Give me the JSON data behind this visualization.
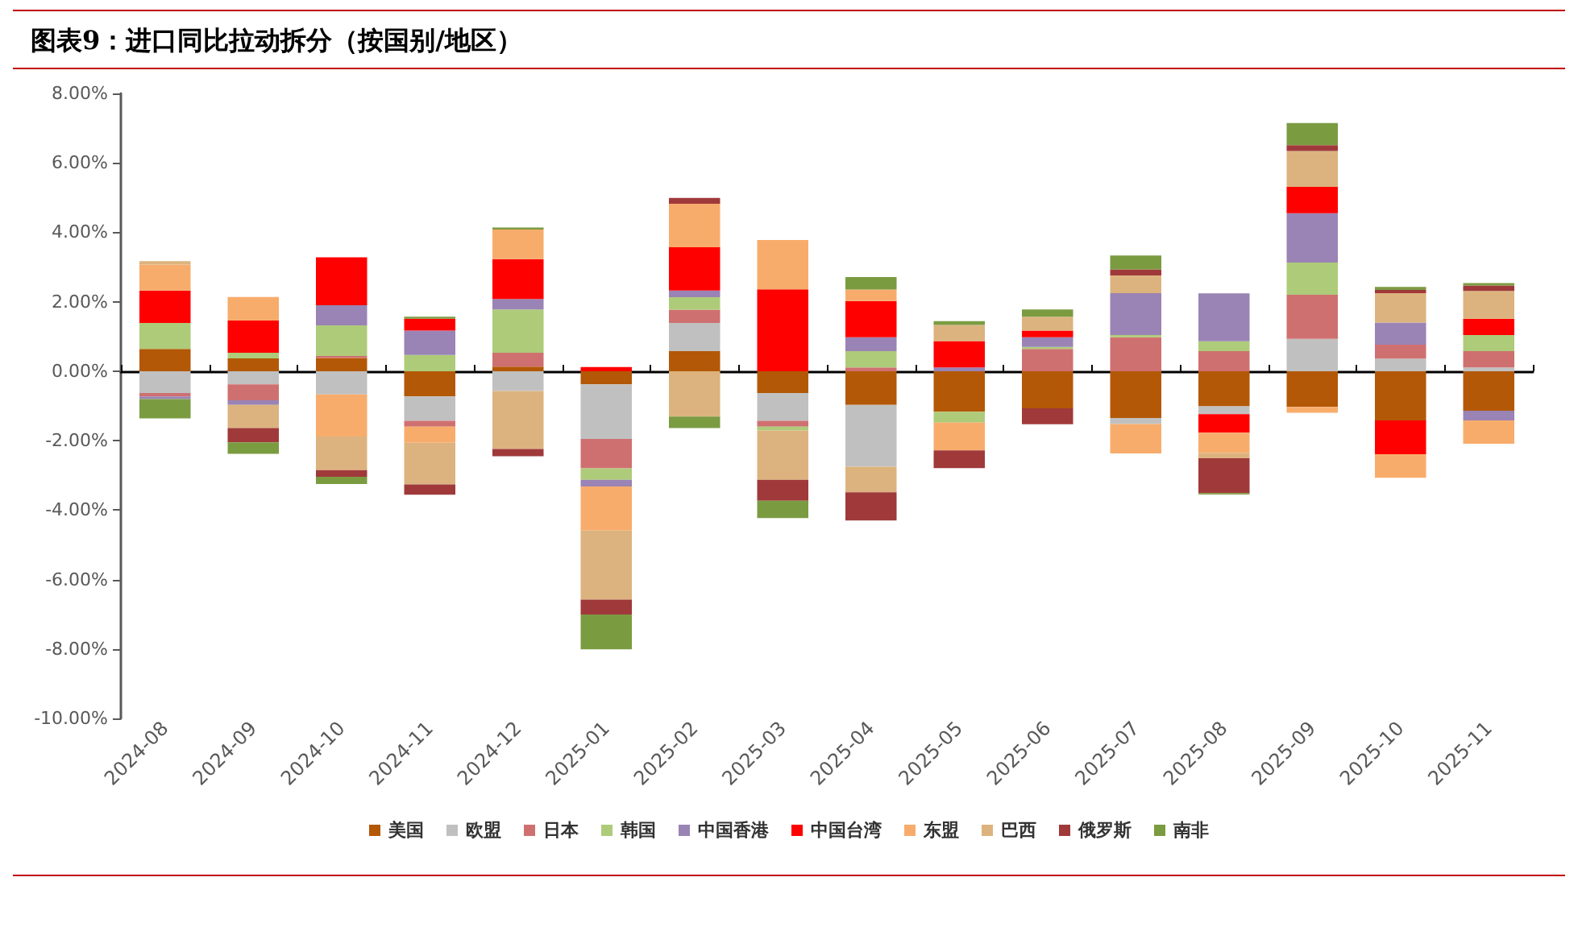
{
  "chart_data": {
    "type": "bar",
    "title": "图表9：进口同比拉动拆分（按国别/地区）",
    "stacked": true,
    "legend": "bottom",
    "categories": [
      "2024-08",
      "2024-09",
      "2024-10",
      "2024-11",
      "2024-12",
      "2025-01",
      "2025-02",
      "2025-03",
      "2025-04",
      "2025-05",
      "2025-06",
      "2025-07",
      "2025-08",
      "2025-09",
      "2025-10",
      "2025-11"
    ],
    "ylim": [
      -10,
      8
    ],
    "yticks": [
      {
        "value": -10,
        "label": "-10.00%"
      },
      {
        "value": -8,
        "label": "-8.00%"
      },
      {
        "value": -6,
        "label": "-6.00%"
      },
      {
        "value": -4,
        "label": "-4.00%"
      },
      {
        "value": -2,
        "label": "-2.00%"
      },
      {
        "value": 0,
        "label": "0.00%"
      },
      {
        "value": 2,
        "label": "2.00%"
      },
      {
        "value": 4,
        "label": "4.00%"
      },
      {
        "value": 6,
        "label": "6.00%"
      },
      {
        "value": 8,
        "label": "8.00%"
      }
    ],
    "series": [
      {
        "name": "美国",
        "color": "#b35806",
        "values": [
          0.64,
          0.37,
          0.38,
          -0.73,
          0.13,
          -0.38,
          0.58,
          -0.63,
          -0.97,
          -1.17,
          -1.07,
          -1.35,
          -1.01,
          -1.03,
          -1.42,
          -1.14
        ]
      },
      {
        "name": "欧盟",
        "color": "#c0c0c0",
        "values": [
          -0.63,
          -0.38,
          -0.67,
          -0.7,
          -0.57,
          -1.57,
          0.81,
          -0.8,
          -1.78,
          0,
          0,
          -0.17,
          -0.23,
          0.93,
          0.36,
          0.11
        ]
      },
      {
        "name": "日本",
        "color": "#cf7070",
        "values": [
          -0.1,
          -0.46,
          0.06,
          -0.17,
          0.4,
          -0.85,
          0.38,
          -0.17,
          0.11,
          0,
          0.64,
          0.98,
          0.58,
          1.27,
          0.4,
          0.47
        ]
      },
      {
        "name": "韩国",
        "color": "#aecb79",
        "values": [
          0.75,
          0.16,
          0.88,
          0.47,
          1.25,
          -0.33,
          0.36,
          -0.11,
          0.47,
          -0.31,
          0.06,
          0.06,
          0.28,
          0.93,
          0,
          0.46
        ]
      },
      {
        "name": "中国香港",
        "color": "#9a83b5",
        "values": [
          -0.07,
          -0.13,
          0.58,
          0.7,
          0.3,
          -0.19,
          0.19,
          0,
          0.4,
          0.11,
          0.28,
          1.21,
          1.38,
          1.42,
          0.64,
          -0.28
        ]
      },
      {
        "name": "中国台湾",
        "color": "#ff0000",
        "values": [
          0.93,
          0.93,
          1.38,
          0.34,
          1.15,
          0.12,
          1.25,
          2.36,
          1.04,
          0.76,
          0.19,
          0,
          -0.53,
          0.76,
          -0.97,
          0.47
        ]
      },
      {
        "name": "东盟",
        "color": "#f8ac6c",
        "values": [
          0.75,
          0.68,
          -1.21,
          -0.46,
          0.85,
          -1.27,
          1.25,
          1.42,
          0.33,
          -0.8,
          0,
          -0.85,
          -0.58,
          -0.17,
          -0.68,
          -0.67
        ]
      },
      {
        "name": "巴西",
        "color": "#dcb37e",
        "values": [
          0.1,
          -0.67,
          -0.97,
          -1.2,
          -1.67,
          -1.99,
          -1.31,
          -1.42,
          -0.74,
          0.46,
          0.4,
          0.51,
          -0.16,
          1.03,
          0.85,
          0.8
        ]
      },
      {
        "name": "俄罗斯",
        "color": "#a0393a",
        "values": [
          0,
          -0.41,
          -0.19,
          -0.3,
          -0.21,
          -0.43,
          0.17,
          -0.6,
          -0.81,
          -0.51,
          -0.46,
          0.17,
          -1,
          0.17,
          0.09,
          0.16
        ]
      },
      {
        "name": "南非",
        "color": "#7b9b41",
        "values": [
          -0.56,
          -0.33,
          -0.21,
          0.06,
          0.06,
          -1,
          -0.33,
          -0.5,
          0.36,
          0.11,
          0.21,
          0.4,
          -0.04,
          0.64,
          0.09,
          0.07
        ]
      }
    ]
  }
}
